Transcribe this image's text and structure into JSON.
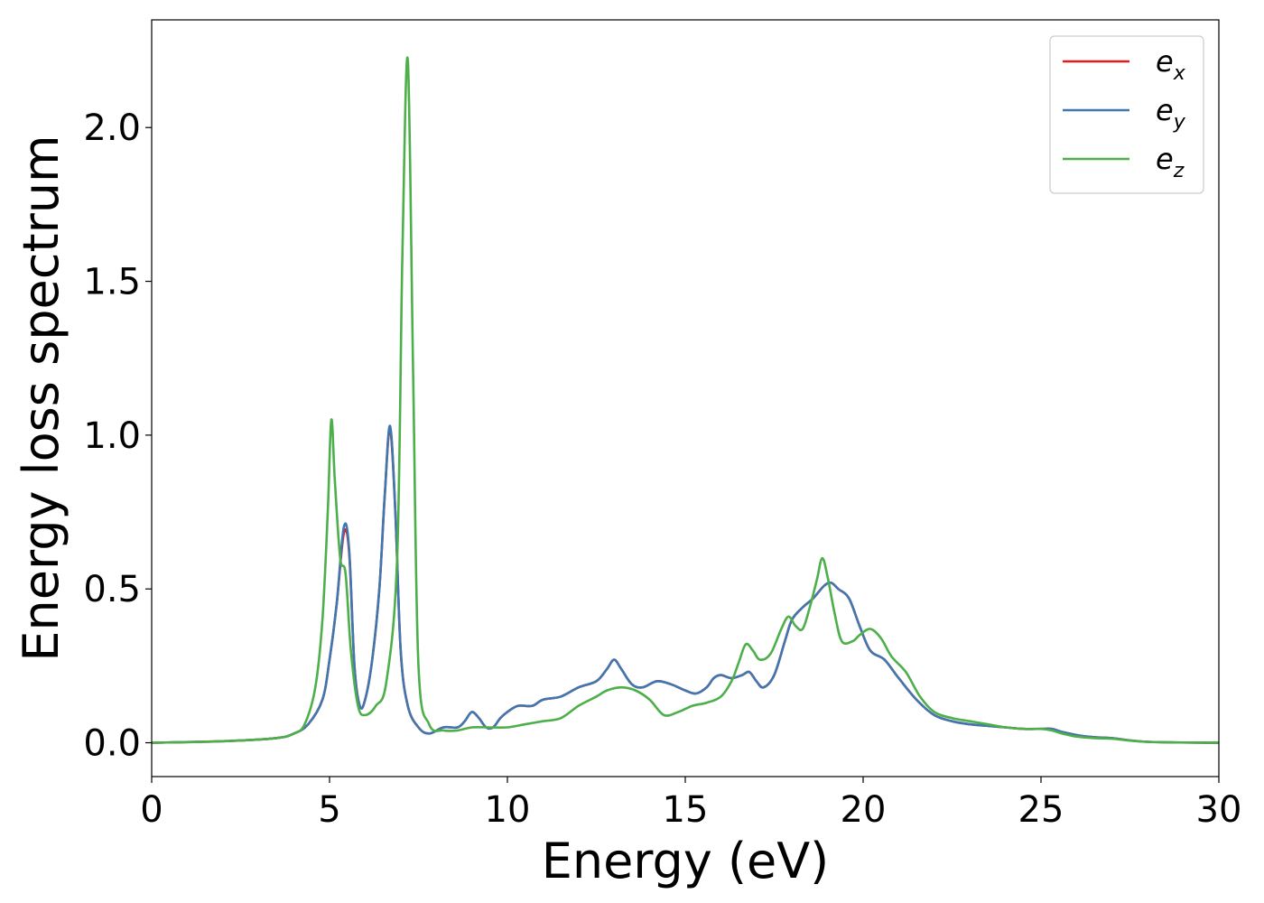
{
  "chart_data": {
    "type": "line",
    "title": "",
    "xlabel": "Energy (eV)",
    "ylabel": "Energy loss spectrum",
    "xlim": [
      0,
      30
    ],
    "ylim": [
      -0.11,
      2.35
    ],
    "xticks": [
      0,
      5,
      10,
      15,
      20,
      25,
      30
    ],
    "xtick_labels": [
      "0",
      "5",
      "10",
      "15",
      "20",
      "25",
      "30"
    ],
    "yticks": [
      0.0,
      0.5,
      1.0,
      1.5,
      2.0
    ],
    "ytick_labels": [
      "0.0",
      "0.5",
      "1.0",
      "1.5",
      "2.0"
    ],
    "grid": false,
    "legend_position": "top-right",
    "series": [
      {
        "name": "e_x",
        "legend_base": "e",
        "legend_sub": "x",
        "color": "#e41a1c",
        "x": [
          0,
          2,
          3.5,
          4,
          4.4,
          4.8,
          5.0,
          5.2,
          5.4,
          5.55,
          5.7,
          5.85,
          6.0,
          6.2,
          6.4,
          6.55,
          6.7,
          6.85,
          7.0,
          7.2,
          7.5,
          7.8,
          8.2,
          8.6,
          8.8,
          9.0,
          9.2,
          9.4,
          9.6,
          9.8,
          10.0,
          10.3,
          10.7,
          11.0,
          11.5,
          12.0,
          12.5,
          12.8,
          13.0,
          13.2,
          13.5,
          13.8,
          14.2,
          14.6,
          15.0,
          15.3,
          15.6,
          15.8,
          16.0,
          16.3,
          16.6,
          16.8,
          17.0,
          17.2,
          17.5,
          17.8,
          18.0,
          18.3,
          18.6,
          18.9,
          19.1,
          19.3,
          19.6,
          19.9,
          20.2,
          20.6,
          21.0,
          21.5,
          22.0,
          22.5,
          23.0,
          23.5,
          24.0,
          24.5,
          25.0,
          25.3,
          25.6,
          26.0,
          26.5,
          27.0,
          28.0,
          30.0
        ],
        "y": [
          0.0,
          0.005,
          0.015,
          0.03,
          0.06,
          0.14,
          0.27,
          0.45,
          0.68,
          0.62,
          0.25,
          0.12,
          0.14,
          0.27,
          0.5,
          0.8,
          1.02,
          0.75,
          0.3,
          0.12,
          0.05,
          0.03,
          0.05,
          0.05,
          0.07,
          0.1,
          0.08,
          0.05,
          0.05,
          0.08,
          0.1,
          0.12,
          0.12,
          0.14,
          0.15,
          0.18,
          0.2,
          0.24,
          0.27,
          0.24,
          0.19,
          0.18,
          0.2,
          0.19,
          0.17,
          0.16,
          0.18,
          0.21,
          0.22,
          0.21,
          0.22,
          0.23,
          0.2,
          0.18,
          0.22,
          0.33,
          0.4,
          0.44,
          0.47,
          0.51,
          0.52,
          0.5,
          0.47,
          0.38,
          0.3,
          0.27,
          0.21,
          0.14,
          0.09,
          0.07,
          0.06,
          0.055,
          0.05,
          0.045,
          0.045,
          0.045,
          0.035,
          0.025,
          0.018,
          0.015,
          0.003,
          0.0
        ]
      },
      {
        "name": "e_y",
        "legend_base": "e",
        "legend_sub": "y",
        "color": "#3f77b0",
        "x": [
          0,
          2,
          3.5,
          4,
          4.4,
          4.8,
          5.0,
          5.2,
          5.4,
          5.55,
          5.7,
          5.85,
          6.0,
          6.2,
          6.4,
          6.55,
          6.7,
          6.85,
          7.0,
          7.2,
          7.5,
          7.8,
          8.2,
          8.6,
          8.8,
          9.0,
          9.2,
          9.4,
          9.6,
          9.8,
          10.0,
          10.3,
          10.7,
          11.0,
          11.5,
          12.0,
          12.5,
          12.8,
          13.0,
          13.2,
          13.5,
          13.8,
          14.2,
          14.6,
          15.0,
          15.3,
          15.6,
          15.8,
          16.0,
          16.3,
          16.6,
          16.8,
          17.0,
          17.2,
          17.5,
          17.8,
          18.0,
          18.3,
          18.6,
          18.9,
          19.1,
          19.3,
          19.6,
          19.9,
          20.2,
          20.6,
          21.0,
          21.5,
          22.0,
          22.5,
          23.0,
          23.5,
          24.0,
          24.5,
          25.0,
          25.3,
          25.6,
          26.0,
          26.5,
          27.0,
          28.0,
          30.0
        ],
        "y": [
          0.0,
          0.005,
          0.015,
          0.03,
          0.06,
          0.14,
          0.27,
          0.45,
          0.7,
          0.63,
          0.25,
          0.12,
          0.14,
          0.27,
          0.5,
          0.8,
          1.03,
          0.75,
          0.3,
          0.12,
          0.05,
          0.03,
          0.05,
          0.05,
          0.07,
          0.1,
          0.08,
          0.05,
          0.05,
          0.08,
          0.1,
          0.12,
          0.12,
          0.14,
          0.15,
          0.18,
          0.2,
          0.24,
          0.27,
          0.24,
          0.19,
          0.18,
          0.2,
          0.19,
          0.17,
          0.16,
          0.18,
          0.21,
          0.22,
          0.21,
          0.22,
          0.23,
          0.2,
          0.18,
          0.22,
          0.33,
          0.4,
          0.44,
          0.47,
          0.51,
          0.52,
          0.5,
          0.47,
          0.38,
          0.3,
          0.27,
          0.21,
          0.14,
          0.09,
          0.07,
          0.06,
          0.055,
          0.05,
          0.045,
          0.045,
          0.045,
          0.035,
          0.025,
          0.018,
          0.015,
          0.003,
          0.0
        ]
      },
      {
        "name": "e_z",
        "legend_base": "e",
        "legend_sub": "z",
        "color": "#4daf4a",
        "x": [
          0,
          2,
          3.5,
          4,
          4.3,
          4.6,
          4.8,
          4.95,
          5.05,
          5.15,
          5.3,
          5.45,
          5.6,
          5.8,
          6.0,
          6.3,
          6.6,
          6.9,
          7.05,
          7.2,
          7.35,
          7.5,
          7.8,
          8.2,
          8.6,
          9.0,
          9.5,
          10.0,
          10.5,
          11.0,
          11.5,
          12.0,
          12.5,
          12.8,
          13.2,
          13.6,
          14.0,
          14.4,
          14.8,
          15.2,
          15.6,
          16.0,
          16.3,
          16.5,
          16.7,
          16.9,
          17.1,
          17.4,
          17.7,
          17.9,
          18.1,
          18.3,
          18.5,
          18.7,
          18.85,
          19.0,
          19.2,
          19.4,
          19.7,
          19.9,
          20.2,
          20.5,
          20.8,
          21.2,
          21.6,
          22.0,
          22.5,
          23.0,
          23.5,
          24.0,
          24.5,
          25.0,
          25.3,
          25.6,
          26.0,
          26.5,
          27.0,
          28.0,
          30.0
        ],
        "y": [
          0.0,
          0.005,
          0.015,
          0.03,
          0.06,
          0.18,
          0.4,
          0.75,
          1.05,
          0.85,
          0.6,
          0.55,
          0.3,
          0.12,
          0.09,
          0.12,
          0.2,
          0.6,
          1.6,
          2.22,
          1.2,
          0.25,
          0.06,
          0.04,
          0.04,
          0.05,
          0.05,
          0.05,
          0.06,
          0.07,
          0.08,
          0.12,
          0.15,
          0.17,
          0.18,
          0.17,
          0.14,
          0.09,
          0.1,
          0.12,
          0.13,
          0.15,
          0.2,
          0.26,
          0.32,
          0.3,
          0.27,
          0.29,
          0.37,
          0.41,
          0.38,
          0.37,
          0.44,
          0.53,
          0.6,
          0.54,
          0.42,
          0.33,
          0.33,
          0.35,
          0.37,
          0.34,
          0.28,
          0.23,
          0.15,
          0.1,
          0.08,
          0.07,
          0.06,
          0.05,
          0.045,
          0.045,
          0.04,
          0.03,
          0.02,
          0.015,
          0.013,
          0.003,
          0.0
        ]
      }
    ]
  }
}
